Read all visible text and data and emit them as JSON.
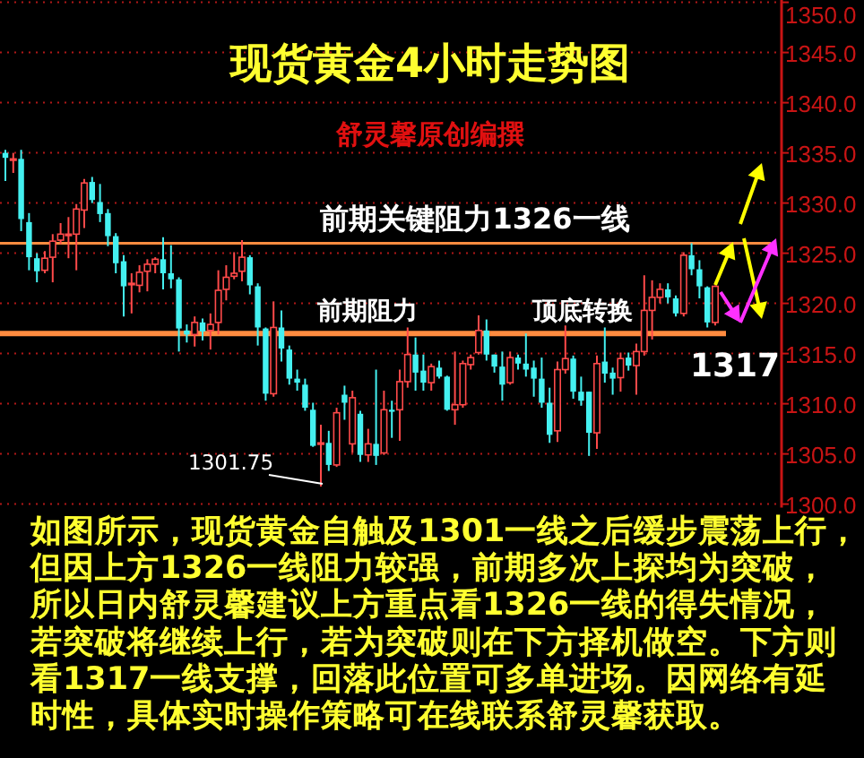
{
  "chart_data": {
    "type": "candlestick",
    "title": "现货黄金4小时走势图",
    "subtitle": "舒灵馨原创编撰",
    "categories": [
      null,
      null,
      null,
      null,
      null,
      null,
      null,
      null,
      null,
      null,
      null,
      null,
      null,
      null,
      null,
      null,
      null,
      null,
      null,
      null,
      null,
      null,
      null,
      null,
      null,
      null,
      null,
      null,
      null,
      null,
      null,
      null,
      null,
      null,
      null,
      null,
      null,
      null,
      null,
      null,
      null,
      null,
      null,
      null,
      null,
      null,
      null,
      null,
      null,
      null,
      null,
      null,
      null,
      null,
      null,
      null,
      null,
      null,
      null,
      null,
      null,
      null,
      null,
      null,
      null,
      null,
      null,
      null,
      null,
      null,
      null,
      null,
      null,
      null,
      null,
      null,
      null,
      null,
      null,
      null,
      null,
      null,
      null,
      null,
      null,
      null,
      null,
      null,
      null,
      null,
      null
    ],
    "ohlc": [
      [
        1335.0,
        1335.3,
        1332.2,
        1334.5
      ],
      [
        1334.3,
        1335.0,
        1333.0,
        1334.4
      ],
      [
        1334.4,
        1335.3,
        1327.2,
        1328.4
      ],
      [
        1328.1,
        1329.0,
        1323.3,
        1324.6
      ],
      [
        1324.5,
        1325.0,
        1322.1,
        1323.2
      ],
      [
        1323.3,
        1325.2,
        1323.0,
        1324.5
      ],
      [
        1324.6,
        1326.9,
        1322.1,
        1326.2
      ],
      [
        1326.3,
        1328.0,
        1325.9,
        1326.9
      ],
      [
        1326.8,
        1328.6,
        1324.5,
        1326.9
      ],
      [
        1326.9,
        1329.9,
        1323.3,
        1329.4
      ],
      [
        1329.3,
        1332.4,
        1327.5,
        1332.0
      ],
      [
        1332.1,
        1332.6,
        1330.0,
        1330.3
      ],
      [
        1330.1,
        1331.9,
        1328.1,
        1328.9
      ],
      [
        1329.0,
        1329.4,
        1325.7,
        1326.7
      ],
      [
        1326.7,
        1327.0,
        1323.0,
        1324.0
      ],
      [
        1324.2,
        1324.8,
        1318.7,
        1321.7
      ],
      [
        1321.9,
        1323.0,
        1319.0,
        1322.0
      ],
      [
        1321.8,
        1323.8,
        1321.1,
        1323.1
      ],
      [
        1323.2,
        1324.4,
        1321.2,
        1323.9
      ],
      [
        1323.9,
        1324.6,
        1323.0,
        1324.4
      ],
      [
        1324.4,
        1326.6,
        1321.4,
        1323.0
      ],
      [
        1323.0,
        1325.8,
        1321.5,
        1322.4
      ],
      [
        1322.4,
        1322.6,
        1315.2,
        1317.5
      ],
      [
        1317.3,
        1317.9,
        1316.1,
        1316.9
      ],
      [
        1316.9,
        1318.7,
        1315.7,
        1318.1
      ],
      [
        1318.1,
        1318.5,
        1316.3,
        1317.2
      ],
      [
        1317.3,
        1319.0,
        1315.4,
        1317.9
      ],
      [
        1318.1,
        1323.3,
        1316.9,
        1321.3
      ],
      [
        1321.4,
        1323.8,
        1320.3,
        1322.6
      ],
      [
        1322.7,
        1325.1,
        1322.4,
        1323.0
      ],
      [
        1323.2,
        1326.3,
        1322.2,
        1324.6
      ],
      [
        1324.6,
        1324.8,
        1320.9,
        1321.8
      ],
      [
        1321.7,
        1322.0,
        1315.8,
        1317.6
      ],
      [
        1317.5,
        1317.6,
        1310.3,
        1311.0
      ],
      [
        1311.0,
        1320.2,
        1310.7,
        1317.6
      ],
      [
        1317.6,
        1319.3,
        1314.2,
        1315.5
      ],
      [
        1315.4,
        1315.8,
        1311.9,
        1312.5
      ],
      [
        1312.5,
        1313.4,
        1311.3,
        1312.1
      ],
      [
        1311.9,
        1312.5,
        1309.3,
        1309.6
      ],
      [
        1309.4,
        1310.1,
        1305.7,
        1305.8
      ],
      [
        1306.0,
        1307.9,
        1301.75,
        1306.1
      ],
      [
        1306.1,
        1307.3,
        1303.3,
        1303.9
      ],
      [
        1303.9,
        1309.6,
        1303.7,
        1309.1
      ],
      [
        1310.9,
        1311.8,
        1308.4,
        1310.1
      ],
      [
        1306.0,
        1311.3,
        1305.1,
        1310.6
      ],
      [
        1309.0,
        1309.3,
        1304.2,
        1304.9
      ],
      [
        1304.9,
        1307.5,
        1304.2,
        1306.0
      ],
      [
        1306.0,
        1313.4,
        1303.9,
        1304.8
      ],
      [
        1305.1,
        1311.3,
        1304.9,
        1309.4
      ],
      [
        1309.4,
        1310.3,
        1306.6,
        1309.2
      ],
      [
        1309.4,
        1313.4,
        1306.3,
        1312.2
      ],
      [
        1312.2,
        1317.6,
        1311.6,
        1314.9
      ],
      [
        1314.9,
        1316.6,
        1311.3,
        1313.1
      ],
      [
        1313.3,
        1314.9,
        1311.3,
        1312.1
      ],
      [
        1312.1,
        1314.0,
        1311.3,
        1313.7
      ],
      [
        1313.6,
        1314.3,
        1312.5,
        1312.7
      ],
      [
        1312.7,
        1312.8,
        1309.3,
        1309.4
      ],
      [
        1309.4,
        1315.2,
        1307.9,
        1309.9
      ],
      [
        1309.9,
        1314.3,
        1309.6,
        1314.0
      ],
      [
        1313.9,
        1314.9,
        1313.4,
        1314.6
      ],
      [
        1315.1,
        1318.8,
        1314.9,
        1317.3
      ],
      [
        1317.3,
        1318.4,
        1314.3,
        1314.9
      ],
      [
        1314.9,
        1314.9,
        1313.1,
        1313.7
      ],
      [
        1313.7,
        1315.2,
        1310.3,
        1311.9
      ],
      [
        1312.1,
        1315.2,
        1311.9,
        1314.6
      ],
      [
        1314.6,
        1314.9,
        1313.4,
        1314.0
      ],
      [
        1314.0,
        1317.0,
        1312.7,
        1313.4
      ],
      [
        1313.6,
        1314.3,
        1310.7,
        1312.5
      ],
      [
        1312.5,
        1314.6,
        1309.6,
        1310.1
      ],
      [
        1310.1,
        1311.6,
        1306.1,
        1306.9
      ],
      [
        1307.3,
        1314.2,
        1306.2,
        1313.4
      ],
      [
        1313.4,
        1317.8,
        1313.0,
        1314.5
      ],
      [
        1314.5,
        1314.8,
        1310.5,
        1311.2
      ],
      [
        1311.2,
        1312.7,
        1309.8,
        1310.3
      ],
      [
        1311.2,
        1311.2,
        1304.8,
        1307.1
      ],
      [
        1307.1,
        1314.8,
        1305.5,
        1314.0
      ],
      [
        1314.2,
        1317.6,
        1312.1,
        1313.0
      ],
      [
        1313.1,
        1313.6,
        1310.9,
        1312.5
      ],
      [
        1312.6,
        1315.1,
        1311.2,
        1314.5
      ],
      [
        1314.6,
        1315.1,
        1313.3,
        1313.8
      ],
      [
        1313.8,
        1316.0,
        1310.9,
        1315.2
      ],
      [
        1315.2,
        1322.8,
        1314.8,
        1319.3
      ],
      [
        1319.3,
        1322.3,
        1316.4,
        1320.6
      ],
      [
        1320.6,
        1322.0,
        1320.0,
        1321.4
      ],
      [
        1321.4,
        1322.0,
        1320.0,
        1320.6
      ],
      [
        1320.5,
        1320.8,
        1318.7,
        1319.0
      ],
      [
        1319.0,
        1325.1,
        1318.7,
        1324.8
      ],
      [
        1324.8,
        1326.0,
        1322.8,
        1323.4
      ],
      [
        1323.4,
        1324.3,
        1320.5,
        1321.7
      ],
      [
        1321.6,
        1321.7,
        1317.6,
        1318.1
      ],
      [
        1318.1,
        1321.8,
        1317.8,
        1321.7
      ]
    ],
    "ylim": [
      1300,
      1350
    ],
    "yticks": [
      {
        "value": 1300,
        "label": "1300.0"
      },
      {
        "value": 1305,
        "label": "1305.0"
      },
      {
        "value": 1310,
        "label": "1310.0"
      },
      {
        "value": 1315,
        "label": "1315.0"
      },
      {
        "value": 1320,
        "label": "1320.0"
      },
      {
        "value": 1325,
        "label": "1325.0"
      },
      {
        "value": 1330,
        "label": "1330.0"
      },
      {
        "value": 1335,
        "label": "1335.0"
      },
      {
        "value": 1340,
        "label": "1340.0"
      },
      {
        "value": 1345,
        "label": "1345.0"
      },
      {
        "value": 1350,
        "label": "1350.0"
      }
    ],
    "grid": "y",
    "tick_labels": "y",
    "ref_lines": [
      {
        "axis": "y",
        "value": 1326,
        "label": "前期关键阻力1326一线",
        "color": "#ff8c40"
      },
      {
        "axis": "y",
        "value": 1317,
        "label": "1317",
        "color": "#ff8c40"
      }
    ],
    "annotations": [
      "1301.75",
      "前期阻力",
      "顶底转换",
      "如图所示，现货黄金自触及1301一线之后缓步震荡上行，但因上方1326一线阻力较强，前期多次上探均为突破，所以日内舒灵馨建议上方重点看1326一线的得失情况，若突破将继续上行，若为突破则在下方择机做空。下方则看1317一线支撑，回落此位置可多单进场。因网络有延时性，具体实时操作策略可在线联系舒灵馨获取。"
    ]
  }
}
